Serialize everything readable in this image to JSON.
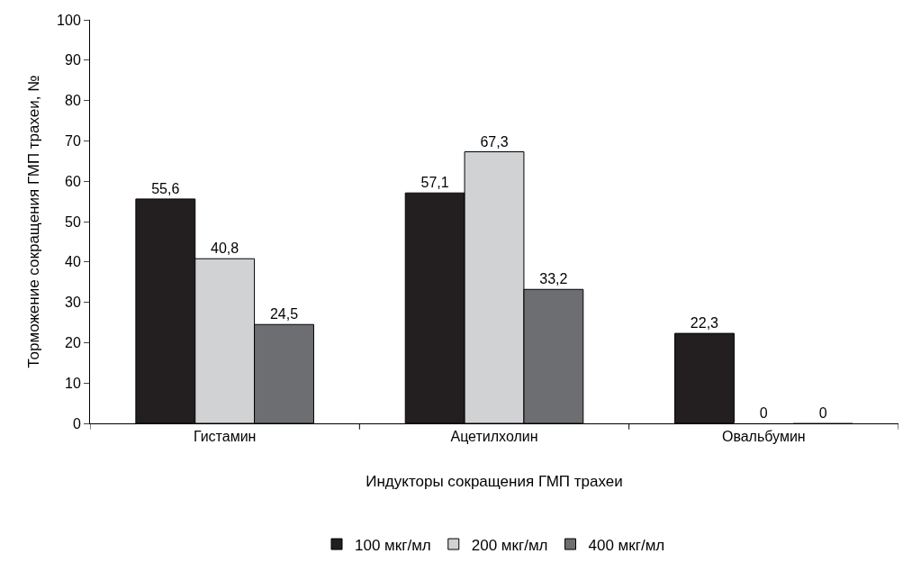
{
  "chart_data": {
    "type": "bar",
    "xlabel": "Индукторы сокращения ГМП трахеи",
    "ylabel": "Торможение сокращения ГМП трахеи, №",
    "categories": [
      "Гистамин",
      "Ацетилхолин",
      "Овальбумин"
    ],
    "series": [
      {
        "name": "100 мкг/мл",
        "color": "#231f20",
        "values": [
          55.6,
          57.1,
          22.3
        ],
        "value_labels": [
          "55,6",
          "57,1",
          "22,3"
        ]
      },
      {
        "name": "200 мкг/мл",
        "color": "#d1d2d4",
        "values": [
          40.8,
          67.3,
          0
        ],
        "value_labels": [
          "40,8",
          "67,3",
          "0"
        ]
      },
      {
        "name": "400 мкг/мл",
        "color": "#6d6e71",
        "values": [
          24.5,
          33.2,
          0
        ],
        "value_labels": [
          "24,5",
          "33,2",
          "0"
        ]
      }
    ],
    "ylim": [
      0,
      100
    ],
    "yticks": [
      0,
      10,
      20,
      30,
      40,
      50,
      60,
      70,
      80,
      90,
      100
    ],
    "grid": false,
    "legend": "bottom"
  }
}
